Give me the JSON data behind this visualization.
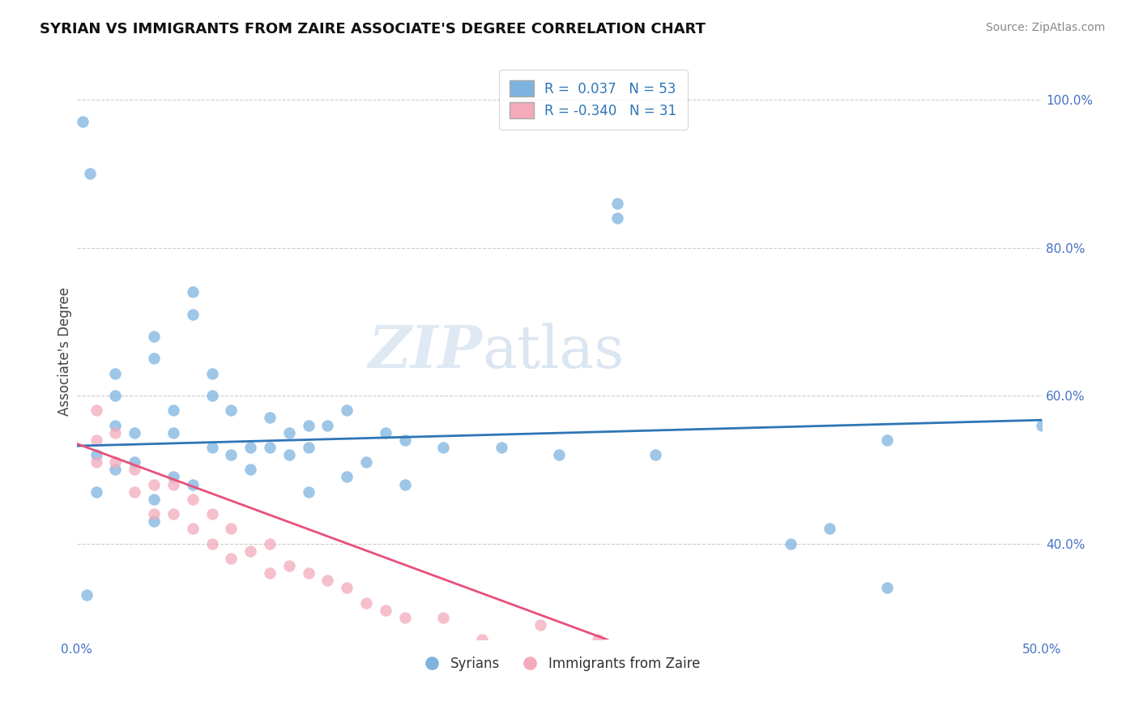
{
  "title": "SYRIAN VS IMMIGRANTS FROM ZAIRE ASSOCIATE'S DEGREE CORRELATION CHART",
  "source_text": "Source: ZipAtlas.com",
  "ylabel": "Associate's Degree",
  "xmin": 0.0,
  "xmax": 0.5,
  "ymin": 0.27,
  "ymax": 1.05,
  "x_tick_positions": [
    0.0,
    0.5
  ],
  "x_tick_labels": [
    "0.0%",
    "50.0%"
  ],
  "y_ticks_right": [
    0.4,
    0.6,
    0.8,
    1.0
  ],
  "y_tick_labels_right": [
    "40.0%",
    "60.0%",
    "80.0%",
    "100.0%"
  ],
  "blue_color": "#7EB3E0",
  "pink_color": "#F4AABB",
  "regression_blue_color": "#2E75B6",
  "regression_pink_color": "#E8507A",
  "text_color": "#4472C4",
  "watermark": "ZIPatlas",
  "blue_scatter_x": [
    0.003,
    0.007,
    0.01,
    0.01,
    0.02,
    0.02,
    0.02,
    0.02,
    0.03,
    0.03,
    0.04,
    0.04,
    0.04,
    0.05,
    0.05,
    0.05,
    0.06,
    0.06,
    0.06,
    0.07,
    0.07,
    0.07,
    0.08,
    0.08,
    0.09,
    0.09,
    0.1,
    0.1,
    0.11,
    0.11,
    0.12,
    0.12,
    0.12,
    0.13,
    0.14,
    0.14,
    0.15,
    0.16,
    0.17,
    0.17,
    0.19,
    0.22,
    0.25,
    0.28,
    0.3,
    0.37,
    0.42,
    0.42,
    0.5,
    0.04,
    0.28,
    0.39,
    0.005
  ],
  "blue_scatter_y": [
    0.97,
    0.9,
    0.52,
    0.47,
    0.63,
    0.6,
    0.56,
    0.5,
    0.55,
    0.51,
    0.68,
    0.65,
    0.46,
    0.58,
    0.55,
    0.49,
    0.74,
    0.71,
    0.48,
    0.63,
    0.6,
    0.53,
    0.58,
    0.52,
    0.53,
    0.5,
    0.57,
    0.53,
    0.55,
    0.52,
    0.56,
    0.53,
    0.47,
    0.56,
    0.58,
    0.49,
    0.51,
    0.55,
    0.54,
    0.48,
    0.53,
    0.53,
    0.52,
    0.84,
    0.52,
    0.4,
    0.34,
    0.54,
    0.56,
    0.43,
    0.86,
    0.42,
    0.33
  ],
  "pink_scatter_x": [
    0.01,
    0.01,
    0.01,
    0.02,
    0.02,
    0.03,
    0.03,
    0.04,
    0.04,
    0.05,
    0.05,
    0.06,
    0.06,
    0.07,
    0.07,
    0.08,
    0.08,
    0.09,
    0.1,
    0.1,
    0.11,
    0.12,
    0.13,
    0.14,
    0.15,
    0.16,
    0.17,
    0.19,
    0.21,
    0.24,
    0.27
  ],
  "pink_scatter_y": [
    0.58,
    0.54,
    0.51,
    0.55,
    0.51,
    0.5,
    0.47,
    0.48,
    0.44,
    0.48,
    0.44,
    0.46,
    0.42,
    0.44,
    0.4,
    0.42,
    0.38,
    0.39,
    0.4,
    0.36,
    0.37,
    0.36,
    0.35,
    0.34,
    0.32,
    0.31,
    0.3,
    0.3,
    0.27,
    0.29,
    0.27
  ],
  "blue_line_x": [
    0.0,
    0.5
  ],
  "blue_line_y": [
    0.532,
    0.567
  ],
  "pink_line_x": [
    0.0,
    0.275
  ],
  "pink_line_y": [
    0.535,
    0.27
  ]
}
